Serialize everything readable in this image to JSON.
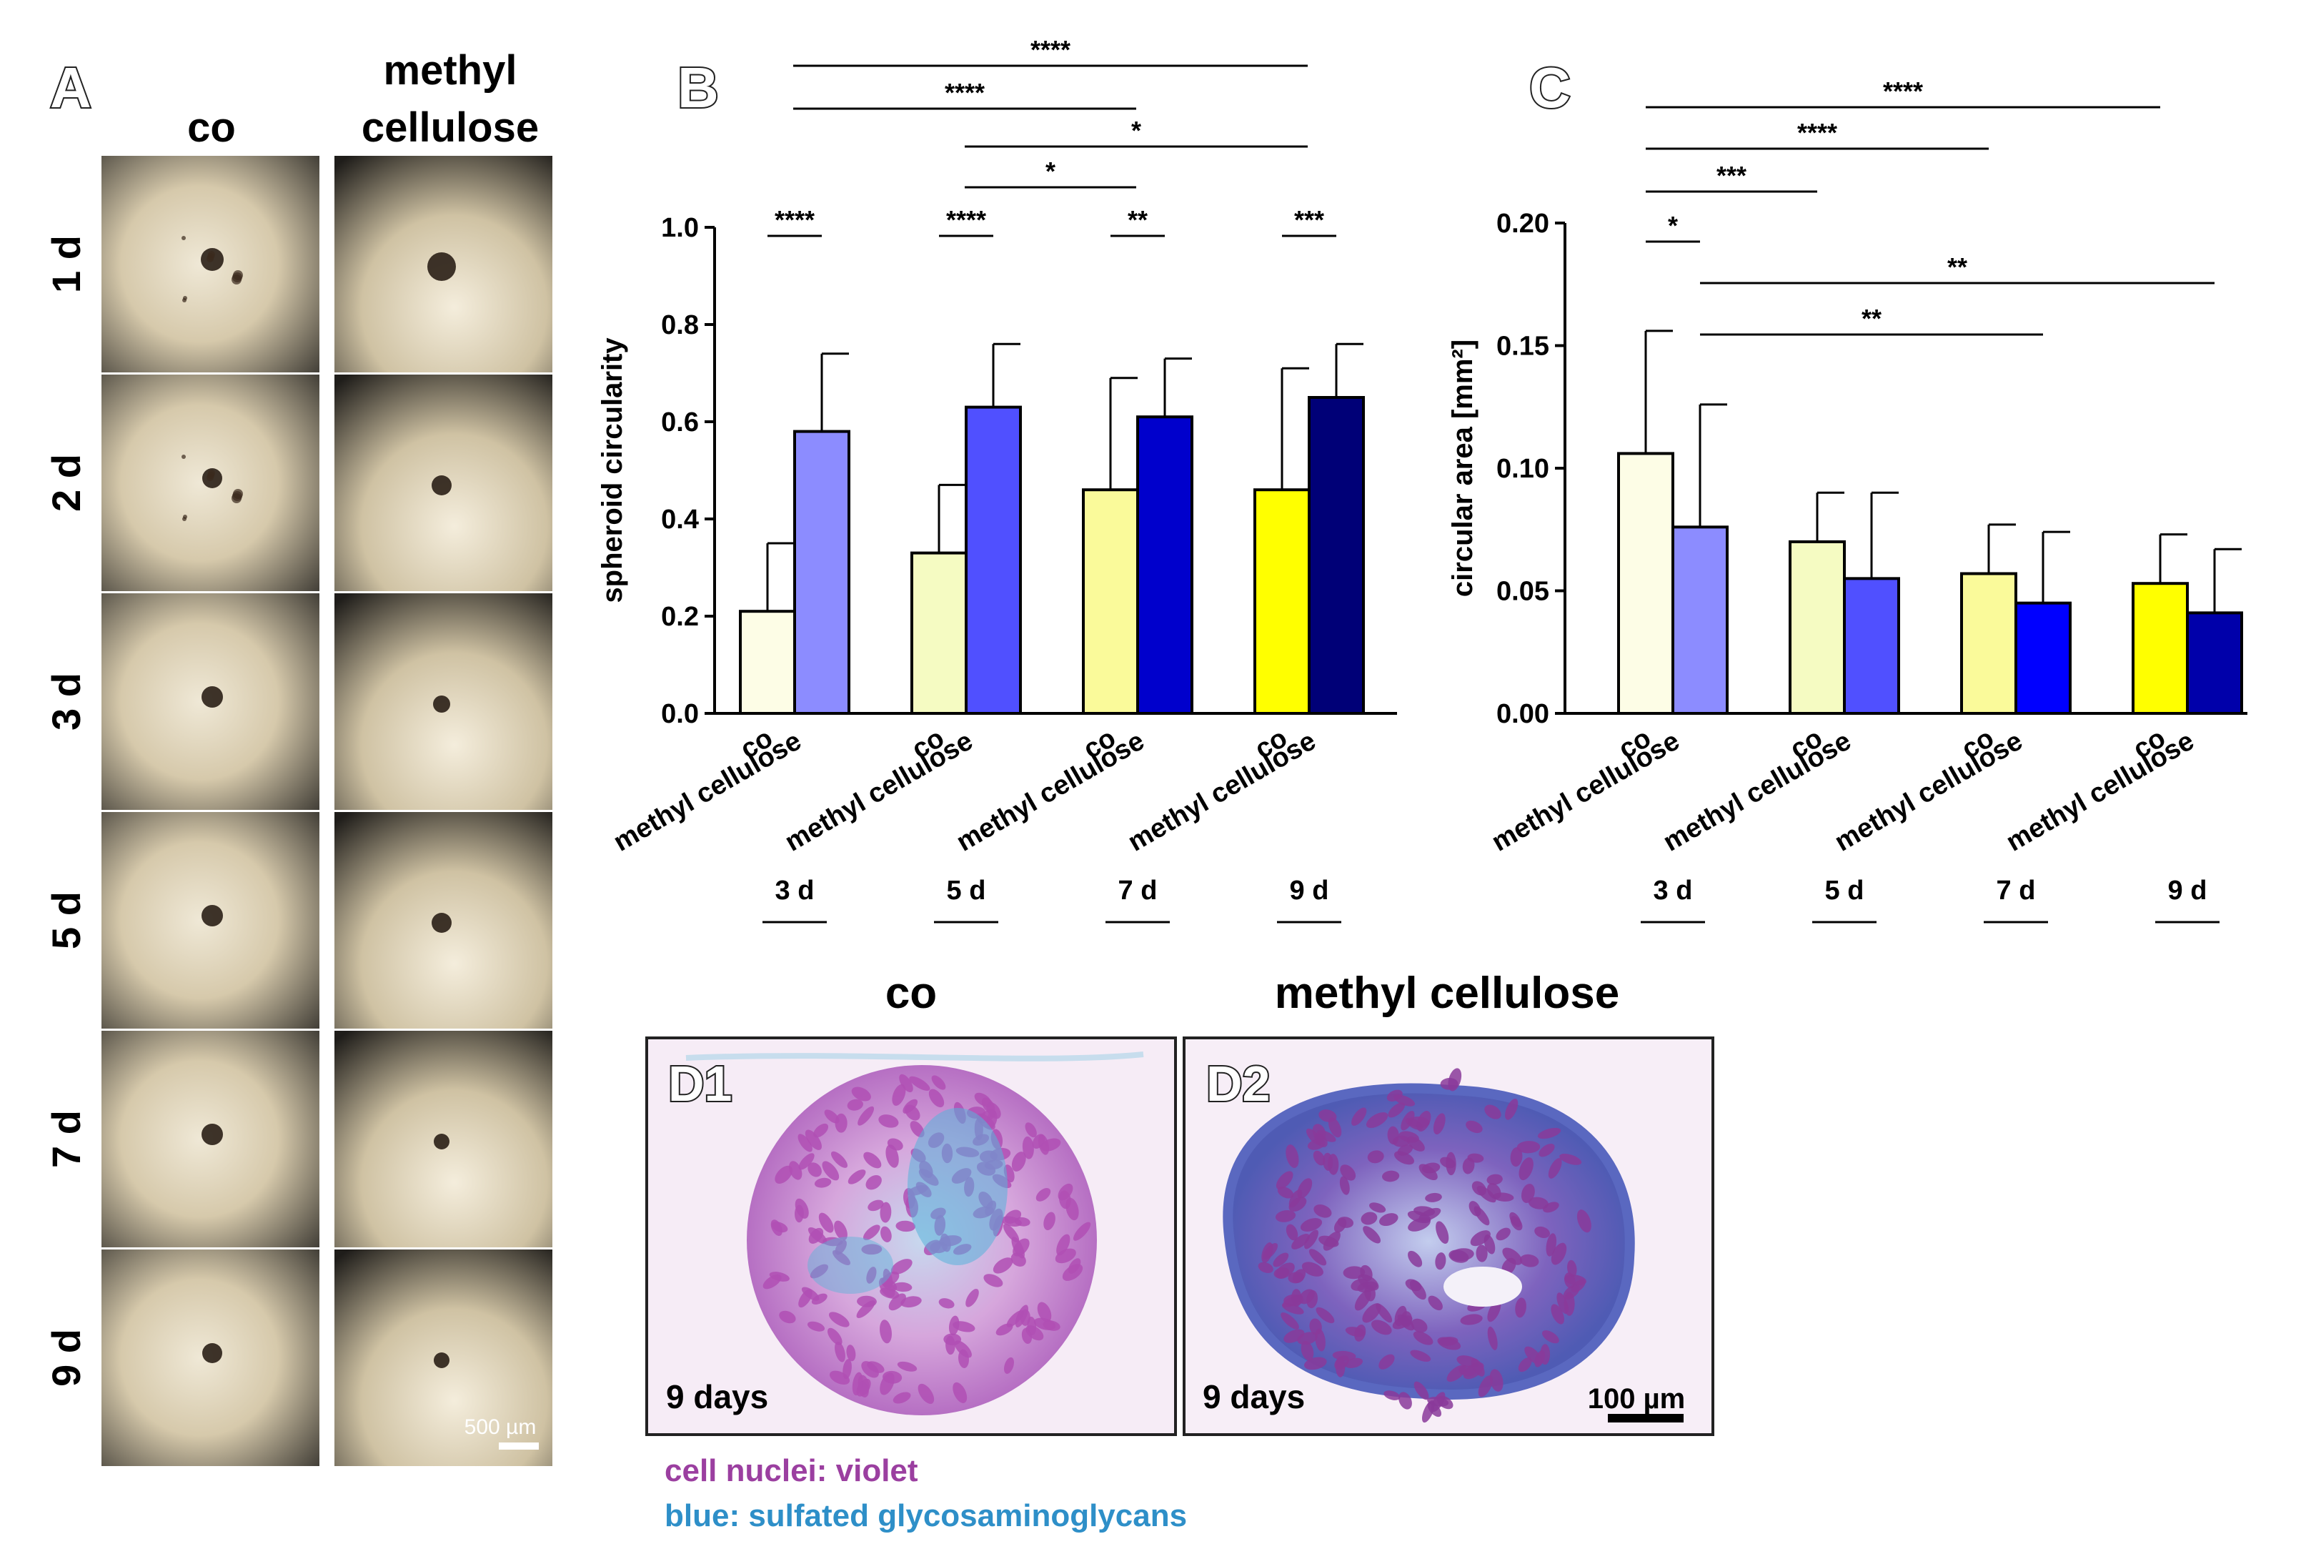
{
  "panel_a": {
    "letter": "A",
    "col_co": "co",
    "col_mc_line1": "methyl",
    "col_mc_line2": "cellulose",
    "rows": [
      "1 d",
      "2 d",
      "3 d",
      "5 d",
      "7 d",
      "9 d"
    ],
    "scale_bar": "500 µm"
  },
  "panel_d": {
    "title_co": "co",
    "title_mc": "methyl cellulose",
    "d1_label": "D1",
    "d2_label": "D2",
    "d1_time": "9 days",
    "d2_time": "9 days",
    "scale_bar": "100 µm",
    "legend_nuclei": "cell nuclei: violet",
    "legend_gag": "blue: sulfated glycosaminoglycans",
    "nuclei_color": "#9b3fa0",
    "gag_color": "#2e8fc8"
  },
  "chart_data": [
    {
      "panel": "B",
      "type": "bar",
      "ylabel": "spheroid circularity",
      "ylim": [
        0,
        1.0
      ],
      "yticks": [
        "0.0",
        "0.2",
        "0.4",
        "0.6",
        "0.8",
        "1.0"
      ],
      "groups": [
        "3 d",
        "5 d",
        "7 d",
        "9 d"
      ],
      "bar_labels": [
        "co",
        "methyl cellulose"
      ],
      "series": [
        {
          "label": "co",
          "values": [
            0.21,
            0.33,
            0.46,
            0.46
          ],
          "errors": [
            0.14,
            0.14,
            0.23,
            0.25
          ],
          "colors": [
            "#fdfde6",
            "#f5fbc2",
            "#fafa9a",
            "#ffff00"
          ]
        },
        {
          "label": "methyl cellulose",
          "values": [
            0.58,
            0.63,
            0.61,
            0.65
          ],
          "errors": [
            0.16,
            0.13,
            0.12,
            0.11
          ],
          "colors": [
            "#8c8cff",
            "#5050ff",
            "#0000cc",
            "#000077"
          ]
        }
      ],
      "within_group_significance": [
        "****",
        "****",
        "**",
        "***"
      ],
      "between_group_significance": [
        {
          "label": "****",
          "from": "3 d co",
          "to": "9 d co"
        },
        {
          "label": "****",
          "from": "3 d co",
          "to": "7 d co"
        },
        {
          "label": "*",
          "from": "5 d co",
          "to": "9 d co"
        },
        {
          "label": "*",
          "from": "5 d co",
          "to": "7 d co"
        }
      ]
    },
    {
      "panel": "C",
      "type": "bar",
      "ylabel": "circular area [mm²]",
      "ylim": [
        0,
        0.2
      ],
      "yticks": [
        "0.00",
        "0.05",
        "0.10",
        "0.15",
        "0.20"
      ],
      "groups": [
        "3 d",
        "5 d",
        "7 d",
        "9 d"
      ],
      "bar_labels": [
        "co",
        "methyl cellulose"
      ],
      "series": [
        {
          "label": "co",
          "values": [
            0.106,
            0.07,
            0.057,
            0.053
          ],
          "errors": [
            0.05,
            0.02,
            0.02,
            0.02
          ],
          "colors": [
            "#fdfde6",
            "#f5fbc2",
            "#fafa9a",
            "#ffff00"
          ]
        },
        {
          "label": "methyl cellulose",
          "values": [
            0.076,
            0.055,
            0.045,
            0.041
          ],
          "errors": [
            0.05,
            0.035,
            0.029,
            0.026
          ],
          "colors": [
            "#8c8cff",
            "#5050ff",
            "#0000ff",
            "#0000aa"
          ]
        }
      ],
      "significance": [
        {
          "label": "****",
          "from": "3 d co",
          "to": "9 d co"
        },
        {
          "label": "****",
          "from": "3 d co",
          "to": "7 d co"
        },
        {
          "label": "***",
          "from": "3 d co",
          "to": "5 d co"
        },
        {
          "label": "*",
          "from": "3 d co",
          "to": "3 d methyl cellulose"
        },
        {
          "label": "**",
          "from": "3 d methyl cellulose",
          "to": "9 d methyl cellulose"
        },
        {
          "label": "**",
          "from": "3 d methyl cellulose",
          "to": "7 d methyl cellulose"
        }
      ]
    }
  ]
}
